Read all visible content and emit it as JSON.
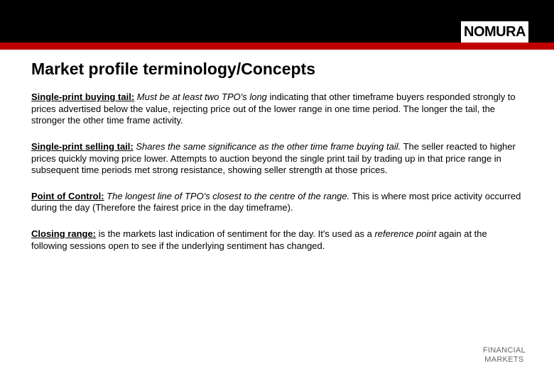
{
  "brand": "NOMURA",
  "colors": {
    "top_bar": "#000000",
    "accent_bar": "#c00000",
    "background": "#ffffff",
    "text": "#000000",
    "footer_text": "#666666"
  },
  "title": "Market profile terminology/Concepts",
  "definitions": [
    {
      "term": "Single-print buying tail:",
      "lead_italic": " Must be at least two TPO's long",
      "rest": " indicating that other timeframe buyers responded strongly to prices advertised below the value, rejecting price out of the lower range in one time period.  The longer the tail, the stronger the other time frame activity."
    },
    {
      "term": "Single-print selling tail:",
      "lead_italic": " Shares the same significance as the other time frame buying tail.",
      "rest": "  The seller reacted to higher prices quickly moving price lower.  Attempts to auction beyond the single print tail by trading up in that price range in subsequent time periods met strong resistance, showing seller strength at those prices."
    },
    {
      "term": "Point of Control:",
      "lead_italic": " The longest line of TPO's closest to the centre of the range.",
      "rest": "  This is where most price activity occurred during the day (Therefore the fairest price in the day timeframe)."
    },
    {
      "term": "Closing range:",
      "lead_plain": " is the markets last indication of sentiment for the day.  It's used as a ",
      "ref_italic": "reference point",
      "rest": " again at the following sessions open to see if the underlying sentiment has changed."
    }
  ],
  "footer_line1": "FINANCIAL",
  "footer_line2": "MARKETS"
}
